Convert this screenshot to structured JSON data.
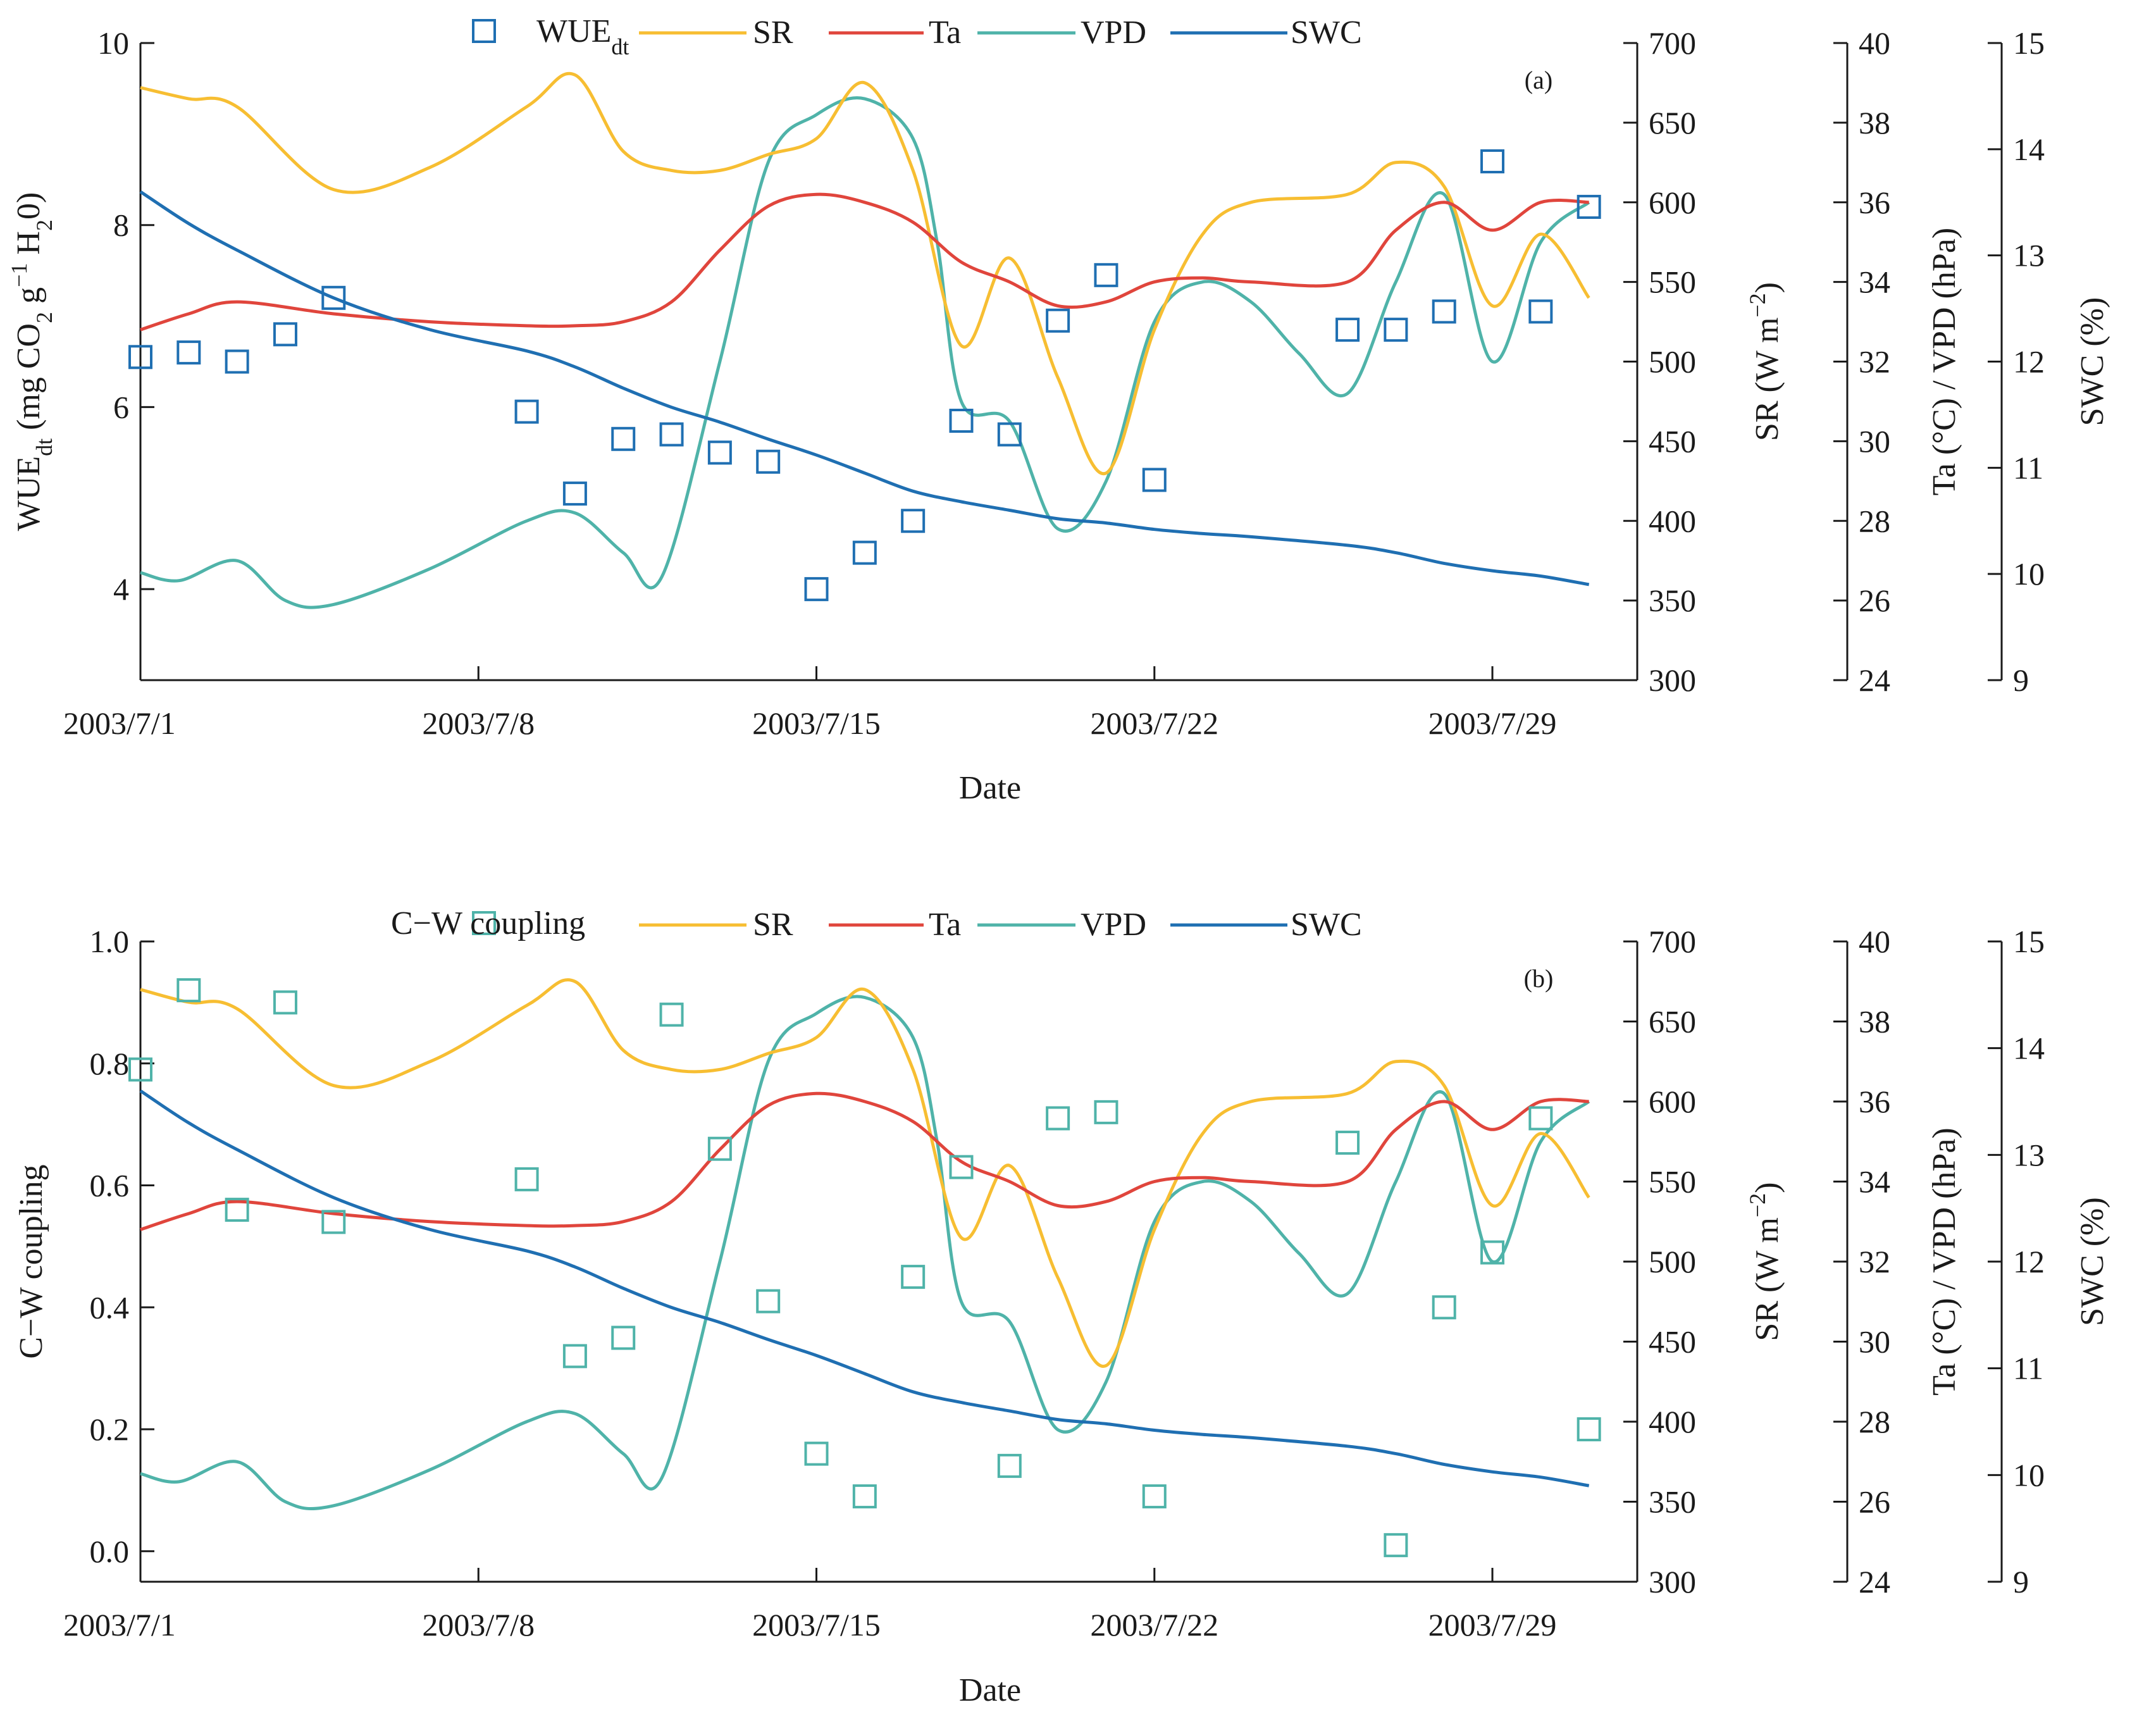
{
  "chart_data": [
    {
      "type": "line",
      "panel_label": "(a)",
      "xlabel": "Date",
      "x_ticks": [
        "2003/7/1",
        "2003/7/8",
        "2003/7/15",
        "2003/7/22",
        "2003/7/29"
      ],
      "x_tick_days": [
        1,
        8,
        15,
        22,
        29
      ],
      "xlim": [
        1,
        32
      ],
      "axes": {
        "left": {
          "label": "WUEdt (mg CO2 g−1 H20)",
          "label_main": "WUE",
          "label_sub": "dt",
          "label_rest": " (mg CO",
          "label_rest2": " g",
          "label_sup": "−1",
          "label_tail": " H",
          "label_tail2": "0)",
          "ylim": [
            3,
            10
          ],
          "ticks": [
            "4",
            "6",
            "8",
            "10"
          ],
          "tick_values": [
            4,
            6,
            8,
            10
          ]
        },
        "sr": {
          "label": "SR (W m−2)",
          "ylim": [
            300,
            700
          ],
          "ticks": [
            "300",
            "350",
            "400",
            "450",
            "500",
            "550",
            "600",
            "650",
            "700"
          ],
          "tick_values": [
            300,
            350,
            400,
            450,
            500,
            550,
            600,
            650,
            700
          ]
        },
        "ta_vpd": {
          "label": "Ta (°C) / VPD (hPa)",
          "ylim": [
            24,
            40
          ],
          "ticks": [
            "24",
            "26",
            "28",
            "30",
            "32",
            "34",
            "36",
            "38",
            "40"
          ],
          "tick_values": [
            24,
            26,
            28,
            30,
            32,
            34,
            36,
            38,
            40
          ]
        },
        "swc": {
          "label": "SWC (%)",
          "ylim": [
            9,
            15
          ],
          "ticks": [
            "9",
            "10",
            "11",
            "12",
            "13",
            "14",
            "15"
          ],
          "tick_values": [
            9,
            10,
            11,
            12,
            13,
            14,
            15
          ]
        }
      },
      "legend": {
        "placement": "top",
        "entries": [
          "WUEdt",
          "SR",
          "Ta",
          "VPD",
          "SWC"
        ]
      },
      "points": {
        "name": "WUEdt",
        "color": "#1f6fb2",
        "x": [
          1,
          2,
          3,
          4,
          5,
          9,
          10,
          11,
          12,
          13,
          14,
          15,
          16,
          17,
          18,
          19,
          20,
          21,
          22,
          26,
          27,
          28,
          29,
          30,
          31
        ],
        "y": [
          6.55,
          6.6,
          6.5,
          6.8,
          7.2,
          5.95,
          5.05,
          5.65,
          5.7,
          5.5,
          5.4,
          4.0,
          4.4,
          4.75,
          5.85,
          5.7,
          6.95,
          7.45,
          5.2,
          6.85,
          6.85,
          7.05,
          8.7,
          7.05,
          8.2
        ]
      },
      "series": [
        {
          "name": "SR",
          "axis": "sr",
          "color": "#f7be32",
          "x": [
            1,
            2,
            3,
            5,
            7,
            9,
            10,
            11,
            12,
            13,
            14,
            15,
            16,
            17,
            18,
            19,
            20,
            21,
            22,
            23,
            24,
            26,
            27,
            28,
            29,
            30,
            31
          ],
          "y": [
            672,
            665,
            660,
            608,
            622,
            660,
            680,
            632,
            620,
            620,
            630,
            640,
            675,
            620,
            510,
            565,
            490,
            430,
            520,
            580,
            600,
            605,
            625,
            610,
            535,
            580,
            540
          ]
        },
        {
          "name": "Ta",
          "axis": "ta_vpd",
          "color": "#e0453c",
          "x": [
            1,
            2,
            3,
            5,
            7,
            9,
            10,
            11,
            12,
            13,
            14,
            15,
            16,
            17,
            18,
            19,
            20,
            21,
            22,
            23,
            24,
            26,
            27,
            28,
            29,
            30,
            31
          ],
          "y": [
            32.8,
            33.2,
            33.5,
            33.2,
            33.0,
            32.9,
            32.9,
            33.0,
            33.5,
            34.8,
            35.9,
            36.2,
            36.0,
            35.5,
            34.5,
            34.0,
            33.4,
            33.5,
            34.0,
            34.1,
            34.0,
            34.0,
            35.3,
            36.0,
            35.3,
            36.0,
            36.0
          ]
        },
        {
          "name": "VPD",
          "axis": "ta_vpd",
          "color": "#4fb3a9",
          "x": [
            1,
            1.8,
            3,
            4,
            5,
            7,
            9,
            10,
            11,
            11.8,
            13,
            14,
            15,
            16,
            17,
            17.5,
            18,
            19,
            20,
            21,
            22,
            23,
            24,
            25,
            26,
            27,
            28,
            29,
            30,
            31
          ],
          "y": [
            26.7,
            26.5,
            27.0,
            26.0,
            25.9,
            26.8,
            28.0,
            28.2,
            27.2,
            26.6,
            32.0,
            37.0,
            38.2,
            38.6,
            37.6,
            35.0,
            31.0,
            30.5,
            27.8,
            29.0,
            33.0,
            34.0,
            33.5,
            32.2,
            31.2,
            34.0,
            36.2,
            32.0,
            35.0,
            36.0
          ]
        },
        {
          "name": "SWC",
          "axis": "swc",
          "color": "#1f6fb2",
          "x": [
            1,
            2,
            3,
            5,
            7,
            9,
            10,
            11,
            12,
            13,
            14,
            15,
            16,
            17,
            18,
            19,
            20,
            21,
            22,
            23,
            24,
            26,
            27,
            28,
            29,
            30,
            31
          ],
          "y": [
            13.6,
            13.3,
            13.05,
            12.6,
            12.3,
            12.1,
            11.95,
            11.75,
            11.57,
            11.43,
            11.27,
            11.12,
            10.95,
            10.78,
            10.68,
            10.6,
            10.52,
            10.48,
            10.42,
            10.38,
            10.35,
            10.27,
            10.2,
            10.1,
            10.03,
            9.98,
            9.9
          ]
        }
      ]
    },
    {
      "type": "line",
      "panel_label": "(b)",
      "xlabel": "Date",
      "x_ticks": [
        "2003/7/1",
        "2003/7/8",
        "2003/7/15",
        "2003/7/22",
        "2003/7/29"
      ],
      "x_tick_days": [
        1,
        8,
        15,
        22,
        29
      ],
      "xlim": [
        1,
        32
      ],
      "axes": {
        "left": {
          "label": "C−W coupling",
          "ylim": [
            -0.05,
            1.0
          ],
          "ticks": [
            "0.0",
            "0.2",
            "0.4",
            "0.6",
            "0.8",
            "1.0"
          ],
          "tick_values": [
            0,
            0.2,
            0.4,
            0.6,
            0.8,
            1.0
          ]
        },
        "sr": {
          "label": "SR (W m−2)",
          "ylim": [
            300,
            700
          ],
          "ticks": [
            "300",
            "350",
            "400",
            "450",
            "500",
            "550",
            "600",
            "650",
            "700"
          ],
          "tick_values": [
            300,
            350,
            400,
            450,
            500,
            550,
            600,
            650,
            700
          ]
        },
        "ta_vpd": {
          "label": "Ta (°C) / VPD (hPa)",
          "ylim": [
            24,
            40
          ],
          "ticks": [
            "24",
            "26",
            "28",
            "30",
            "32",
            "34",
            "36",
            "38",
            "40"
          ],
          "tick_values": [
            24,
            26,
            28,
            30,
            32,
            34,
            36,
            38,
            40
          ]
        },
        "swc": {
          "label": "SWC (%)",
          "ylim": [
            9,
            15
          ],
          "ticks": [
            "9",
            "10",
            "11",
            "12",
            "13",
            "14",
            "15"
          ],
          "tick_values": [
            9,
            10,
            11,
            12,
            13,
            14,
            15
          ]
        }
      },
      "legend": {
        "placement": "top",
        "entries": [
          "C−W coupling",
          "SR",
          "Ta",
          "VPD",
          "SWC"
        ]
      },
      "points": {
        "name": "C−W coupling",
        "color": "#4fb3a9",
        "x": [
          1,
          2,
          3,
          4,
          5,
          9,
          10,
          11,
          12,
          13,
          14,
          15,
          16,
          17,
          18,
          19,
          20,
          21,
          22,
          26,
          27,
          28,
          29,
          30,
          31
        ],
        "y": [
          0.79,
          0.92,
          0.56,
          0.9,
          0.54,
          0.61,
          0.32,
          0.35,
          0.88,
          0.66,
          0.41,
          0.16,
          0.09,
          0.45,
          0.63,
          0.14,
          0.71,
          0.72,
          0.09,
          0.67,
          0.01,
          0.4,
          0.49,
          0.71,
          0.2
        ]
      },
      "series": [
        {
          "name": "SR",
          "axis": "sr",
          "color": "#f7be32",
          "x": [
            1,
            2,
            3,
            5,
            7,
            9,
            10,
            11,
            12,
            13,
            14,
            15,
            16,
            17,
            18,
            19,
            20,
            21,
            22,
            23,
            24,
            26,
            27,
            28,
            29,
            30,
            31
          ],
          "y": [
            670,
            662,
            658,
            610,
            625,
            660,
            675,
            632,
            620,
            620,
            630,
            640,
            670,
            620,
            515,
            560,
            490,
            435,
            520,
            580,
            600,
            605,
            625,
            610,
            535,
            580,
            540
          ]
        },
        {
          "name": "Ta",
          "axis": "ta_vpd",
          "color": "#e0453c",
          "x": [
            1,
            2,
            3,
            5,
            7,
            9,
            10,
            11,
            12,
            13,
            14,
            15,
            16,
            17,
            18,
            19,
            20,
            21,
            22,
            23,
            24,
            26,
            27,
            28,
            29,
            30,
            31
          ],
          "y": [
            32.8,
            33.2,
            33.5,
            33.2,
            33.0,
            32.9,
            32.9,
            33.0,
            33.5,
            34.8,
            35.9,
            36.2,
            36.0,
            35.5,
            34.5,
            34.0,
            33.4,
            33.5,
            34.0,
            34.1,
            34.0,
            34.0,
            35.3,
            36.0,
            35.3,
            36.0,
            36.0
          ]
        },
        {
          "name": "VPD",
          "axis": "ta_vpd",
          "color": "#4fb3a9",
          "x": [
            1,
            1.8,
            3,
            4,
            5,
            7,
            9,
            10,
            11,
            11.8,
            13,
            14,
            15,
            16,
            17,
            17.5,
            18,
            19,
            20,
            21,
            22,
            23,
            24,
            25,
            26,
            27,
            28,
            29,
            30,
            31
          ],
          "y": [
            26.7,
            26.5,
            27.0,
            26.0,
            25.9,
            26.8,
            28.0,
            28.2,
            27.2,
            26.6,
            32.0,
            37.0,
            38.2,
            38.6,
            37.6,
            35.0,
            31.0,
            30.5,
            27.8,
            29.0,
            33.0,
            34.0,
            33.5,
            32.2,
            31.2,
            34.0,
            36.2,
            32.0,
            35.0,
            36.0
          ]
        },
        {
          "name": "SWC",
          "axis": "swc",
          "color": "#1f6fb2",
          "x": [
            1,
            2,
            3,
            5,
            7,
            9,
            10,
            11,
            12,
            13,
            14,
            15,
            16,
            17,
            18,
            19,
            20,
            21,
            22,
            23,
            24,
            26,
            27,
            28,
            29,
            30,
            31
          ],
          "y": [
            13.6,
            13.3,
            13.05,
            12.6,
            12.3,
            12.1,
            11.95,
            11.75,
            11.57,
            11.43,
            11.27,
            11.12,
            10.95,
            10.78,
            10.68,
            10.6,
            10.52,
            10.48,
            10.42,
            10.38,
            10.35,
            10.27,
            10.2,
            10.1,
            10.03,
            9.98,
            9.9
          ]
        }
      ]
    }
  ]
}
